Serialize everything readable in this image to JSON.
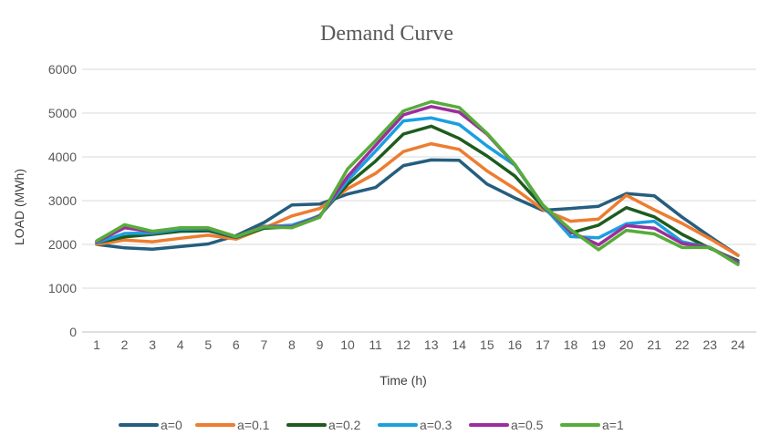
{
  "chart_data": {
    "type": "line",
    "title": "Demand Curve",
    "xlabel": "Time (h)",
    "ylabel": "LOAD (MWh)",
    "x": [
      1,
      2,
      3,
      4,
      5,
      6,
      7,
      8,
      9,
      10,
      11,
      12,
      13,
      14,
      15,
      16,
      17,
      18,
      19,
      20,
      21,
      22,
      23,
      24
    ],
    "xlim": [
      1,
      24
    ],
    "ylim": [
      0,
      6000
    ],
    "yticks": [
      0,
      1000,
      2000,
      3000,
      4000,
      5000,
      6000
    ],
    "grid": "horizontal",
    "legend": "bottom",
    "series": [
      {
        "name": "a=0",
        "color": "#255e7e",
        "values": [
          2000,
          1920,
          1890,
          1950,
          2010,
          2200,
          2500,
          2900,
          2920,
          3150,
          3300,
          3800,
          3930,
          3920,
          3380,
          3060,
          2780,
          2820,
          2870,
          3160,
          3110,
          2620,
          2180,
          1750
        ]
      },
      {
        "name": "a=0.1",
        "color": "#ed7d31",
        "values": [
          2000,
          2100,
          2060,
          2140,
          2210,
          2120,
          2370,
          2650,
          2820,
          3270,
          3620,
          4120,
          4300,
          4170,
          3680,
          3270,
          2800,
          2530,
          2580,
          3120,
          2790,
          2480,
          2130,
          1750
        ]
      },
      {
        "name": "a=0.2",
        "color": "#1e5c1e",
        "values": [
          2040,
          2170,
          2230,
          2300,
          2310,
          2160,
          2370,
          2400,
          2660,
          3370,
          3900,
          4520,
          4700,
          4420,
          4020,
          3560,
          2860,
          2260,
          2440,
          2840,
          2630,
          2230,
          1910,
          1630
        ]
      },
      {
        "name": "a=0.3",
        "color": "#1aa0e0",
        "values": [
          2040,
          2250,
          2260,
          2350,
          2360,
          2170,
          2400,
          2440,
          2650,
          3460,
          4130,
          4820,
          4890,
          4740,
          4250,
          3810,
          2890,
          2180,
          2150,
          2470,
          2530,
          2060,
          1930,
          1590
        ]
      },
      {
        "name": "a=0.5",
        "color": "#9b2f9b",
        "values": [
          2060,
          2380,
          2290,
          2380,
          2370,
          2180,
          2410,
          2400,
          2640,
          3550,
          4260,
          4960,
          5150,
          5020,
          4520,
          3820,
          2900,
          2290,
          1990,
          2430,
          2370,
          2020,
          1930,
          1580
        ]
      },
      {
        "name": "a=1",
        "color": "#56ad39",
        "values": [
          2080,
          2450,
          2300,
          2380,
          2380,
          2180,
          2400,
          2380,
          2620,
          3720,
          4370,
          5050,
          5260,
          5130,
          4540,
          3830,
          2900,
          2340,
          1880,
          2320,
          2240,
          1930,
          1930,
          1540
        ]
      }
    ]
  }
}
